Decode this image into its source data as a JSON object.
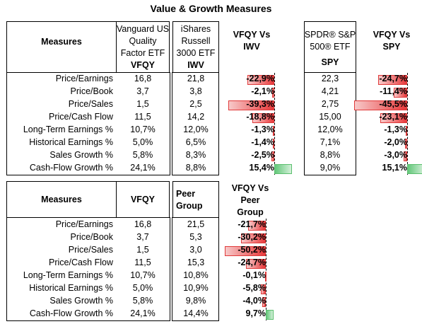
{
  "title": "Value & Growth Measures",
  "table1": {
    "measures_label": "Measures",
    "col_vfqy": {
      "name": "Vanguard US Quality Factor ETF",
      "ticker": "VFQY"
    },
    "col_iwv": {
      "name": "iShares Russell 3000 ETF",
      "ticker": "IWV"
    },
    "cmp_iwv": "VFQY Vs IWV",
    "col_spy": {
      "name": "SPDR® S&P 500® ETF",
      "ticker": "SPY"
    },
    "cmp_spy": "VFQY Vs SPY",
    "rows": [
      {
        "label": "Price/Earnings",
        "vfqy": "16,8",
        "iwv": "21,8",
        "vs_iwv": "-22,9%",
        "vs_iwv_value": -22.9,
        "spy": "22,3",
        "vs_spy": "-24,7%",
        "vs_spy_value": -24.7
      },
      {
        "label": "Price/Book",
        "vfqy": "3,7",
        "iwv": "3,8",
        "vs_iwv": "-2,1%",
        "vs_iwv_value": -2.1,
        "spy": "4,21",
        "vs_spy": "-11,4%",
        "vs_spy_value": -11.4
      },
      {
        "label": "Price/Sales",
        "vfqy": "1,5",
        "iwv": "2,5",
        "vs_iwv": "-39,3%",
        "vs_iwv_value": -39.3,
        "spy": "2,75",
        "vs_spy": "-45,5%",
        "vs_spy_value": -45.5
      },
      {
        "label": "Price/Cash Flow",
        "vfqy": "11,5",
        "iwv": "14,2",
        "vs_iwv": "-18,8%",
        "vs_iwv_value": -18.8,
        "spy": "15,00",
        "vs_spy": "-23,1%",
        "vs_spy_value": -23.1
      },
      {
        "label": "Long-Term Earnings %",
        "vfqy": "10,7%",
        "iwv": "12,0%",
        "vs_iwv": "-1,3%",
        "vs_iwv_value": -1.3,
        "spy": "12,0%",
        "vs_spy": "-1,3%",
        "vs_spy_value": -1.3
      },
      {
        "label": "Historical Earnings %",
        "vfqy": "5,0%",
        "iwv": "6,5%",
        "vs_iwv": "-1,4%",
        "vs_iwv_value": -1.4,
        "spy": "7,1%",
        "vs_spy": "-2,0%",
        "vs_spy_value": -2.0
      },
      {
        "label": "Sales Growth %",
        "vfqy": "5,8%",
        "iwv": "8,3%",
        "vs_iwv": "-2,5%",
        "vs_iwv_value": -2.5,
        "spy": "8,8%",
        "vs_spy": "-3,0%",
        "vs_spy_value": -3.0
      },
      {
        "label": "Cash-Flow Growth %",
        "vfqy": "24,1%",
        "iwv": "8,8%",
        "vs_iwv": "15,4%",
        "vs_iwv_value": 15.4,
        "spy": "9,0%",
        "vs_spy": "15,1%",
        "vs_spy_value": 15.1
      }
    ]
  },
  "table2": {
    "measures_label": "Measures",
    "col_vfqy": "VFQY",
    "col_peer": "Peer Group",
    "cmp_peer": "VFQY Vs Peer Group",
    "rows": [
      {
        "label": "Price/Earnings",
        "vfqy": "16,8",
        "peer": "21,5",
        "vs_peer": "-21,7%",
        "vs_peer_value": -21.7
      },
      {
        "label": "Price/Book",
        "vfqy": "3,7",
        "peer": "5,3",
        "vs_peer": "-30,2%",
        "vs_peer_value": -30.2
      },
      {
        "label": "Price/Sales",
        "vfqy": "1,5",
        "peer": "3,0",
        "vs_peer": "-50,2%",
        "vs_peer_value": -50.2
      },
      {
        "label": "Price/Cash Flow",
        "vfqy": "11,5",
        "peer": "15,3",
        "vs_peer": "-24,7%",
        "vs_peer_value": -24.7
      },
      {
        "label": "Long-Term Earnings %",
        "vfqy": "10,7%",
        "peer": "10,8%",
        "vs_peer": "-0,1%",
        "vs_peer_value": -0.1
      },
      {
        "label": "Historical Earnings %",
        "vfqy": "5,0%",
        "peer": "10,9%",
        "vs_peer": "-5,8%",
        "vs_peer_value": -5.8
      },
      {
        "label": "Sales Growth %",
        "vfqy": "5,8%",
        "peer": "9,8%",
        "vs_peer": "-4,0%",
        "vs_peer_value": -4.0
      },
      {
        "label": "Cash-Flow Growth %",
        "vfqy": "24,1%",
        "peer": "14,4%",
        "vs_peer": "9,7%",
        "vs_peer_value": 9.7
      }
    ]
  },
  "colors": {
    "negative": "#e8393b",
    "positive": "#63c77a"
  }
}
